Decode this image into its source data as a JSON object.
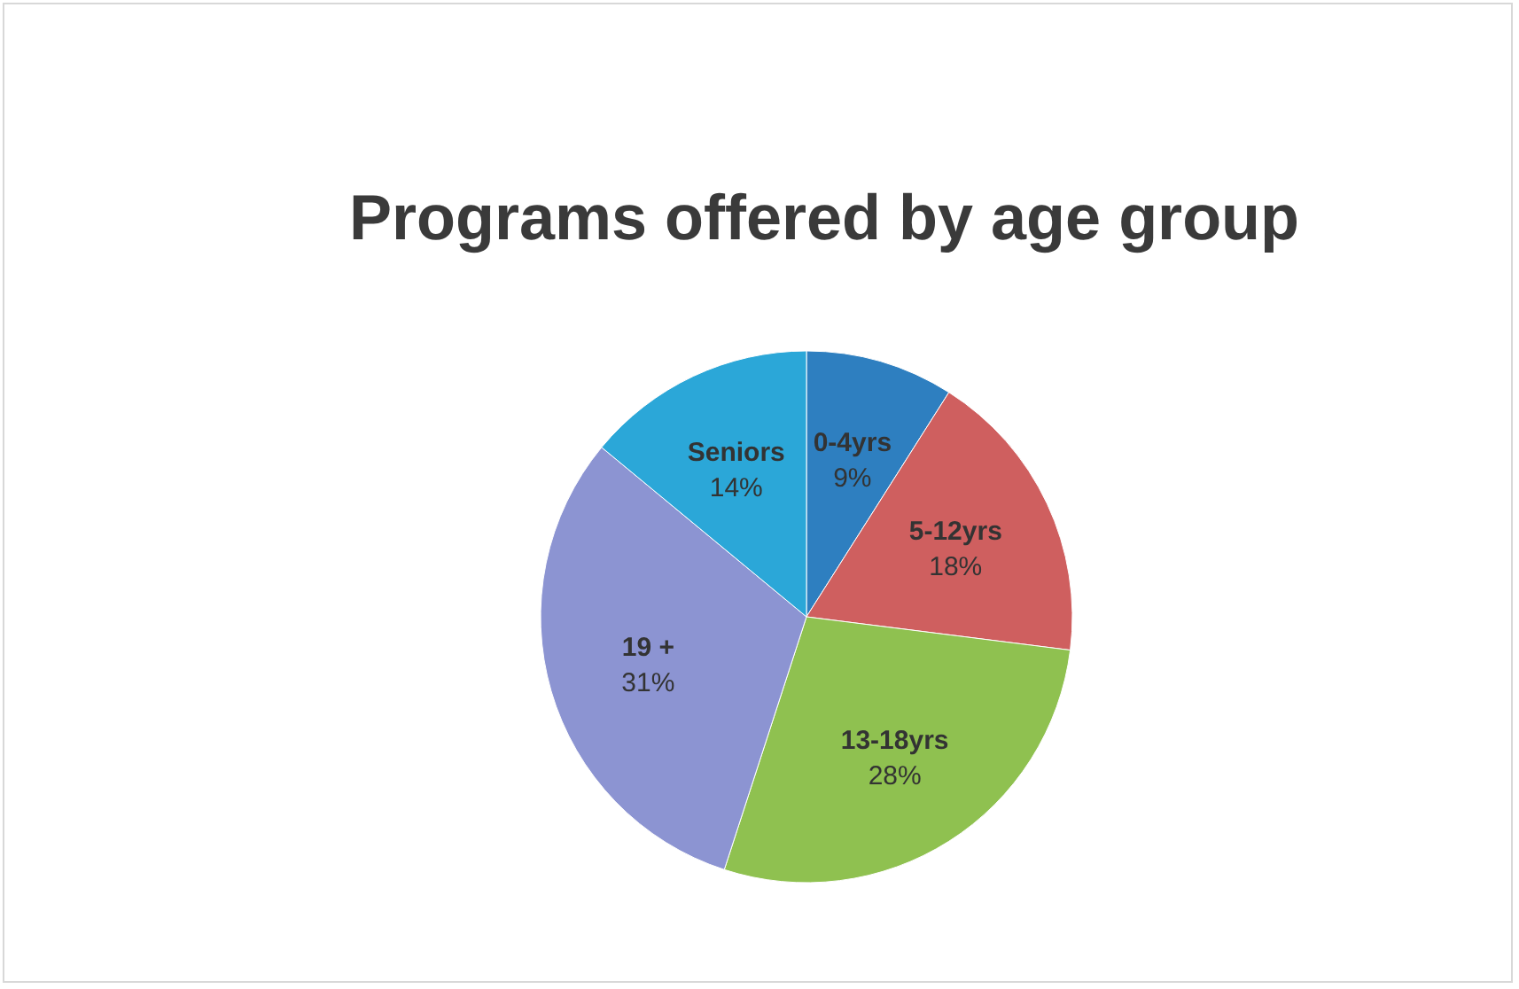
{
  "chart_data": {
    "type": "pie",
    "title": "Programs offered by age group",
    "categories": [
      "0-4yrs",
      "5-12yrs",
      "13-18yrs",
      "19 +",
      "Seniors"
    ],
    "values": [
      9,
      18,
      28,
      31,
      14
    ],
    "value_labels": [
      "9%",
      "18%",
      "28%",
      "31%",
      "14%"
    ],
    "colors": [
      "#2e7fc0",
      "#cf5f5f",
      "#8fc150",
      "#8c94d2",
      "#2ba7d8"
    ]
  }
}
